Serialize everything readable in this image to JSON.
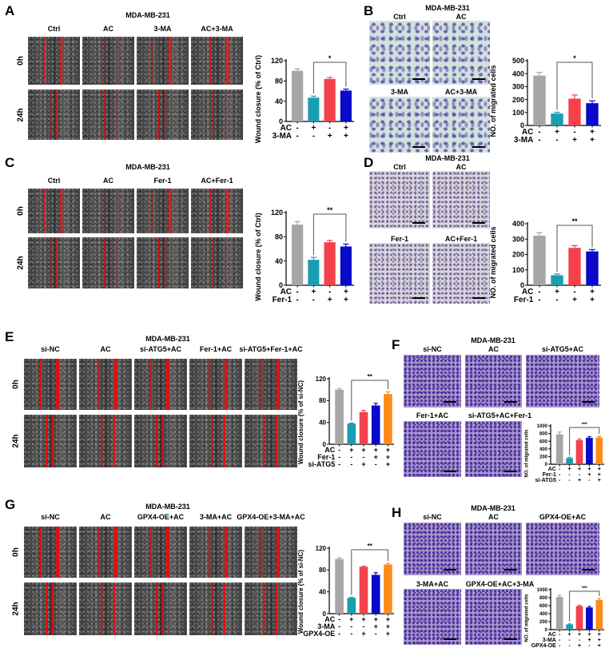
{
  "panels": {
    "A": {
      "letter": "A",
      "title": "MDA-MB-231",
      "columns": [
        "Ctrl",
        "AC",
        "3-MA",
        "AC+3-MA"
      ],
      "rows": [
        "0h",
        "24h"
      ]
    },
    "B": {
      "letter": "B",
      "title": "MDA-MB-231",
      "columns": [
        "Ctrl",
        "AC",
        "3-MA",
        "AC+3-MA"
      ]
    },
    "C": {
      "letter": "C",
      "title": "MDA-MB-231",
      "columns": [
        "Ctrl",
        "AC",
        "Fer-1",
        "AC+Fer-1"
      ],
      "rows": [
        "0h",
        "24h"
      ]
    },
    "D": {
      "letter": "D",
      "title": "MDA-MB-231",
      "columns": [
        "Ctrl",
        "AC",
        "Fer-1",
        "AC+Fer-1"
      ]
    },
    "E": {
      "letter": "E",
      "title": "MDA-MB-231",
      "columns": [
        "si-NC",
        "AC",
        "si-ATG5+AC",
        "Fer-1+AC",
        "si-ATG5+Fer-1+AC"
      ],
      "rows": [
        "0h",
        "24h"
      ]
    },
    "F": {
      "letter": "F",
      "title": "MDA-MB-231",
      "columns": [
        "si-NC",
        "AC",
        "si-ATG5+AC",
        "Fer-1+AC",
        "si-ATG5+AC+Fer-1"
      ]
    },
    "G": {
      "letter": "G",
      "title": "MDA-MB-231",
      "columns": [
        "si-NC",
        "AC",
        "GPX4-OE+AC",
        "3-MA+AC",
        "GPX4-OE+3-MA+AC"
      ],
      "rows": [
        "0h",
        "24h"
      ]
    },
    "H": {
      "letter": "H",
      "title": "MDA-MB-231",
      "columns": [
        "si-NC",
        "AC",
        "GPX4-OE+AC",
        "3-MA+AC",
        "GPX4-OE+AC+3-MA"
      ]
    }
  },
  "colors": {
    "ctrl": "#a6a6a6",
    "ac": "#1c9cb0",
    "third": "#f4414b",
    "fourth": "#0a0ac8",
    "fifth": "#ff8c1a",
    "wound_line": "#e01010"
  },
  "chart_data": [
    {
      "panel": "A",
      "type": "bar",
      "ylabel": "Wound closure (% of Ctrl)",
      "ylim": [
        0,
        120
      ],
      "yticks": [
        "0",
        "40",
        "80",
        "120"
      ],
      "values": [
        100,
        47,
        84,
        61
      ],
      "errors": [
        4,
        3,
        3,
        3
      ],
      "conditions": [
        {
          "label": "AC",
          "signs": [
            "-",
            "+",
            "-",
            "+"
          ]
        },
        {
          "label": "3-MA",
          "signs": [
            "-",
            "-",
            "+",
            "+"
          ]
        }
      ],
      "significance": {
        "from": 2,
        "to": 4,
        "label": "*"
      }
    },
    {
      "panel": "B",
      "type": "bar",
      "ylabel": "NO. of migrated cells",
      "ylim": [
        0,
        500
      ],
      "yticks": [
        "0",
        "100",
        "200",
        "300",
        "400",
        "500"
      ],
      "values": [
        385,
        92,
        207,
        172
      ],
      "errors": [
        25,
        10,
        28,
        18
      ],
      "conditions": [
        {
          "label": "AC",
          "signs": [
            "-",
            "+",
            "-",
            "+"
          ]
        },
        {
          "label": "3-MA",
          "signs": [
            "-",
            "-",
            "+",
            "+"
          ]
        }
      ],
      "significance": {
        "from": 2,
        "to": 4,
        "label": "*"
      }
    },
    {
      "panel": "C",
      "type": "bar",
      "ylabel": "Wound closure (% of Ctrl)",
      "ylim": [
        0,
        120
      ],
      "yticks": [
        "0",
        "40",
        "80",
        "120"
      ],
      "values": [
        100,
        42,
        71,
        64
      ],
      "errors": [
        5,
        4,
        3,
        4
      ],
      "conditions": [
        {
          "label": "AC",
          "signs": [
            "-",
            "+",
            "-",
            "+"
          ]
        },
        {
          "label": "Fer-1",
          "signs": [
            "-",
            "-",
            "+",
            "+"
          ]
        }
      ],
      "significance": {
        "from": 2,
        "to": 4,
        "label": "**"
      }
    },
    {
      "panel": "D",
      "type": "bar",
      "ylabel": "NO. of migrated cells",
      "ylim": [
        0,
        400
      ],
      "yticks": [
        "0",
        "100",
        "200",
        "300",
        "400"
      ],
      "values": [
        322,
        65,
        243,
        220
      ],
      "errors": [
        20,
        8,
        15,
        12
      ],
      "conditions": [
        {
          "label": "AC",
          "signs": [
            "-",
            "+",
            "-",
            "+"
          ]
        },
        {
          "label": "Fer-1",
          "signs": [
            "-",
            "-",
            "+",
            "+"
          ]
        }
      ],
      "significance": {
        "from": 2,
        "to": 4,
        "label": "**"
      }
    },
    {
      "panel": "E",
      "type": "bar",
      "ylabel": "Wound closure (% of si-NC)",
      "ylim": [
        0,
        120
      ],
      "yticks": [
        "0",
        "40",
        "80",
        "120"
      ],
      "values": [
        100,
        38,
        59,
        71,
        92
      ],
      "errors": [
        2,
        1,
        3,
        4,
        4
      ],
      "conditions": [
        {
          "label": "AC",
          "signs": [
            "-",
            "+",
            "+",
            "+",
            "+"
          ]
        },
        {
          "label": "Fer-1",
          "signs": [
            "-",
            "-",
            "-",
            "+",
            "+"
          ]
        },
        {
          "label": "si-ATG5",
          "signs": [
            "-",
            "-",
            "+",
            "-",
            "+"
          ]
        }
      ],
      "significance": {
        "from": 2,
        "to": 5,
        "label": "**"
      }
    },
    {
      "panel": "F",
      "type": "bar",
      "ylabel": "NO. of migrated cells",
      "ylim": [
        0,
        1000
      ],
      "yticks": [
        "0",
        "200",
        "400",
        "600",
        "800",
        "1000"
      ],
      "values": [
        780,
        160,
        630,
        690,
        700
      ],
      "errors": [
        60,
        20,
        30,
        30,
        30
      ],
      "conditions": [
        {
          "label": "AC",
          "signs": [
            "-",
            "+",
            "+",
            "+",
            "+"
          ]
        },
        {
          "label": "Fer-1",
          "signs": [
            "-",
            "-",
            "-",
            "+",
            "+"
          ]
        },
        {
          "label": "si-ATG5",
          "signs": [
            "-",
            "-",
            "+",
            "-",
            "+"
          ]
        }
      ],
      "significance": {
        "from": 2,
        "to": 5,
        "label": "***"
      }
    },
    {
      "panel": "G",
      "type": "bar",
      "ylabel": "Wound closure (% of si-NC)",
      "ylim": [
        0,
        120
      ],
      "yticks": [
        "0",
        "40",
        "80",
        "120"
      ],
      "values": [
        100,
        29,
        86,
        71,
        90
      ],
      "errors": [
        2,
        1,
        1,
        4,
        2
      ],
      "conditions": [
        {
          "label": "AC",
          "signs": [
            "-",
            "+",
            "+",
            "+",
            "+"
          ]
        },
        {
          "label": "3-MA",
          "signs": [
            "-",
            "-",
            "-",
            "+",
            "+"
          ]
        },
        {
          "label": "GPX4-OE",
          "signs": [
            "-",
            "-",
            "+",
            "-",
            "+"
          ]
        }
      ],
      "significance": {
        "from": 2,
        "to": 5,
        "label": "**"
      }
    },
    {
      "panel": "H",
      "type": "bar",
      "ylabel": "NO. of migrated cells",
      "ylim": [
        0,
        1000
      ],
      "yticks": [
        "0",
        "200",
        "400",
        "600",
        "800",
        "1000"
      ],
      "values": [
        820,
        130,
        590,
        555,
        740
      ],
      "errors": [
        40,
        15,
        20,
        25,
        40
      ],
      "conditions": [
        {
          "label": "AC",
          "signs": [
            "-",
            "+",
            "+",
            "+",
            "+"
          ]
        },
        {
          "label": "3-MA",
          "signs": [
            "-",
            "-",
            "-",
            "+",
            "+"
          ]
        },
        {
          "label": "GPX4-OE",
          "signs": [
            "-",
            "-",
            "+",
            "-",
            "+"
          ]
        }
      ],
      "significance": {
        "from": 2,
        "to": 5,
        "label": "***"
      }
    }
  ]
}
